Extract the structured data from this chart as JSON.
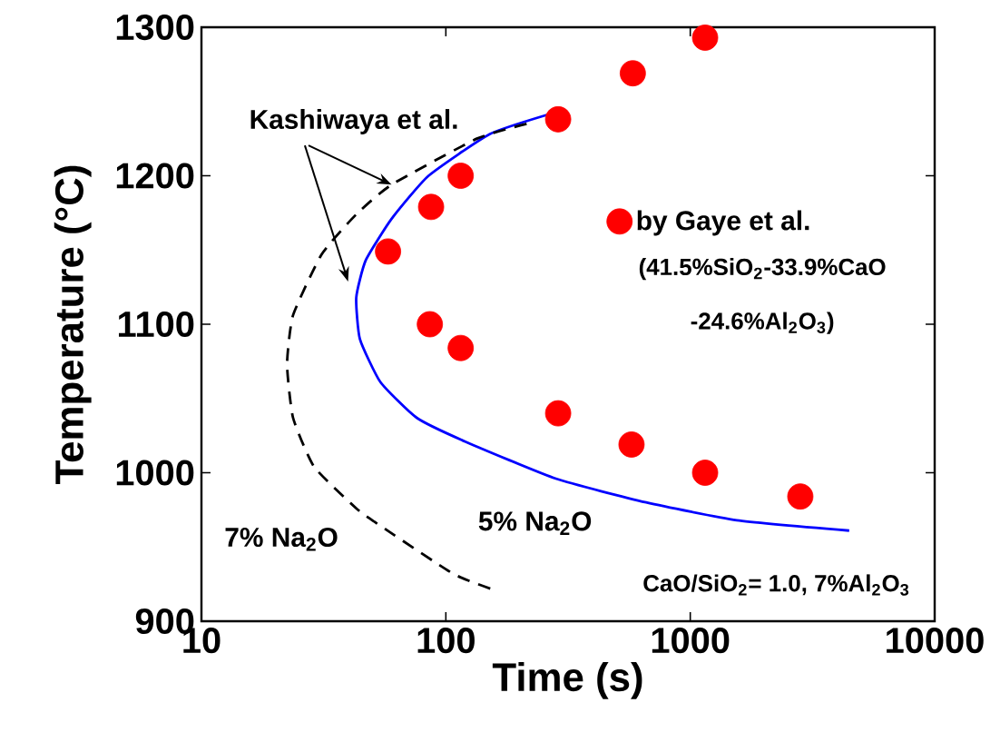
{
  "chart_data": {
    "type": "scatter",
    "xlabel": "Time (s)",
    "ylabel": "Temperature (°C)",
    "log": "x",
    "xlim": [
      10,
      10000
    ],
    "xticks": [
      10,
      100,
      1000,
      10000
    ],
    "ylim": [
      900,
      1300
    ],
    "yticks": [
      900,
      1000,
      1100,
      1200,
      1300
    ],
    "legend": "right",
    "marker": "circle",
    "annotations": [
      {
        "text": "Kashiwaya et al.",
        "x": 60,
        "y": 1194
      },
      "(41.5%SiO$_{2}$-33.9%CaO",
      "-24.6%Al$_{2}$O$_{3}$)",
      "CaO/SiO$_{2}$= 1.0, 7%Al$_{2}$O$_{3}$"
    ],
    "series": [
      {
        "name": "by Gaye et al.",
        "color": "#ff0000",
        "x": [
          1150,
          582,
          288,
          115,
          87,
          58,
          86,
          115,
          288,
          575,
          1150,
          2820
        ],
        "values": [
          1293,
          1269,
          1238,
          1200,
          1179,
          1149,
          1100,
          1084,
          1040,
          1019,
          1000,
          984
        ]
      },
      {
        "name": "5% Na$_{2}$O",
        "type": "line",
        "line_style": "solid",
        "marker": "none",
        "color": "#0000ff",
        "x": [
          259,
          151,
          85,
          60,
          47,
          43,
          44.5,
          54,
          76,
          120,
          282,
          660,
          1550,
          4470
        ],
        "values": [
          1241,
          1228,
          1200,
          1171,
          1143,
          1118,
          1090,
          1061,
          1037,
          1021,
          996,
          980,
          968,
          961
        ]
      },
      {
        "name": "7% Na$_{2}$O",
        "type": "line",
        "line_style": "dashed",
        "marker": "none",
        "color": "#000000",
        "x": [
          214,
          134,
          60,
          43,
          31,
          23.7,
          22.4,
          23.7,
          28.9,
          43,
          51,
          107,
          158
        ],
        "values": [
          1235,
          1225,
          1194,
          1174,
          1147,
          1106,
          1073,
          1037,
          1004,
          976,
          967,
          932,
          921
        ]
      }
    ]
  }
}
